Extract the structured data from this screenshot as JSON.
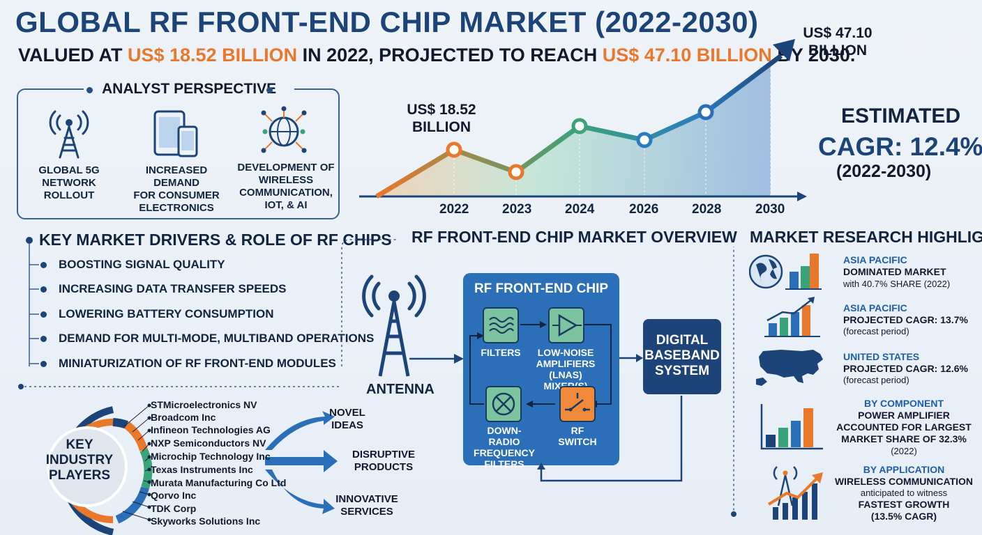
{
  "header": {
    "title": "GLOBAL RF FRONT-END CHIP MARKET (2022-2030)",
    "subtitle_prefix": "VALUED AT ",
    "subtitle_value_1": "US$ 18.52 BILLION",
    "subtitle_mid": " IN 2022, PROJECTED TO REACH ",
    "subtitle_value_2": "US$ 47.10 BILLION",
    "subtitle_suffix": " BY 2030."
  },
  "analyst": {
    "title": "ANALYST PERSPECTIVE",
    "items": [
      {
        "icon": "cell-tower-icon",
        "label_lines": [
          "GLOBAL 5G",
          "NETWORK",
          "ROLLOUT"
        ]
      },
      {
        "icon": "devices-icon",
        "label_lines": [
          "INCREASED DEMAND",
          "FOR CONSUMER",
          "ELECTRONICS"
        ]
      },
      {
        "icon": "network-globe-icon",
        "label_lines": [
          "DEVELOPMENT OF",
          "WIRELESS",
          "COMMUNICATION,",
          "IOT, & AI"
        ]
      }
    ]
  },
  "chart_data": {
    "type": "area",
    "categories": [
      "2022",
      "2023",
      "2024",
      "2026",
      "2028",
      "2030"
    ],
    "annotations": [
      {
        "year": "2022",
        "text_lines": [
          "US$ 18.52",
          "BILLION"
        ]
      },
      {
        "year": "2030",
        "text_lines": [
          "US$ 47.10",
          "BILLION"
        ]
      }
    ]
  },
  "cagr": {
    "line1": "ESTIMATED",
    "line2": "CAGR: 12.4%",
    "line3": "(2022-2030)"
  },
  "drivers": {
    "title": "KEY MARKET DRIVERS & ROLE OF RF CHIPS",
    "items": [
      "BOOSTING SIGNAL QUALITY",
      "INCREASING DATA TRANSFER SPEEDS",
      "LOWERING BATTERY CONSUMPTION",
      "DEMAND FOR MULTI-MODE, MULTIBAND OPERATIONS",
      "MINIATURIZATION OF RF FRONT-END MODULES"
    ]
  },
  "overview": {
    "title": "RF FRONT-END CHIP MARKET OVERVIEW",
    "antenna": "ANTENNA",
    "chip_title": "RF FRONT-END CHIP",
    "filters": "FILTERS",
    "lna_lines": [
      "LOW-NOISE",
      "AMPLIFIERS (LNAs)",
      "MIXER(S)"
    ],
    "down_lines": [
      "DOWN-",
      "RADIO FREQUENCY",
      "FILTERS"
    ],
    "switch_lines": [
      "RF",
      "SWITCH"
    ],
    "baseband_lines": [
      "DIGITAL",
      "BASEBAND",
      "SYSTEM"
    ]
  },
  "players": {
    "label_lines": [
      "KEY",
      "INDUSTRY",
      "PLAYERS"
    ],
    "items": [
      "STMicroelectronics NV",
      "Broadcom Inc",
      "Infineon Technologies AG",
      "NXP Semiconductors NV",
      "Microchip Technology Inc",
      "Texas Instruments Inc",
      "Murata Manufacturing Co Ltd",
      "Qorvo Inc",
      "TDK Corp",
      "Skyworks Solutions Inc"
    ],
    "outcomes": [
      {
        "lines": [
          "NOVEL",
          "IDEAS"
        ]
      },
      {
        "lines": [
          "DISRUPTIVE",
          "PRODUCTS"
        ]
      },
      {
        "lines": [
          "INNOVATIVE",
          "SERVICES"
        ]
      }
    ]
  },
  "highlights": {
    "title": "MARKET RESEARCH HIGHLIGHTS",
    "items": [
      {
        "icon": "globe-bar-chart-icon",
        "region": "ASIA PACIFIC",
        "main": "DOMINATED MARKET",
        "note": "with 40.7% SHARE (2022)"
      },
      {
        "icon": "growth-chart-icon",
        "region": "ASIA PACIFIC",
        "main": "PROJECTED CAGR: 13.7%",
        "note": "(forecast period)"
      },
      {
        "icon": "usa-map-icon",
        "region": "UNITED STATES",
        "main": "PROJECTED CAGR: 12.6%",
        "note": "(forecast period)"
      },
      {
        "icon": "component-bars-icon",
        "region": "BY COMPONENT",
        "main_lines": [
          "POWER AMPLIFIER",
          "ACCOUNTED FOR LARGEST",
          "MARKET SHARE OF 32.3%"
        ],
        "note": "(2022)"
      },
      {
        "icon": "wireless-growth-icon",
        "region": "BY APPLICATION",
        "main": "WIRELESS COMMUNICATION",
        "note": "anticipated to witness",
        "main2": "FASTEST GROWTH",
        "note2": "(13.5% CAGR)"
      }
    ]
  },
  "colors": {
    "navy": "#1c4478",
    "orange": "#e9782a",
    "chip_blue": "#2a6fb8",
    "filter_green": "#7cc4a0",
    "switch_orange": "#f08a3a"
  }
}
